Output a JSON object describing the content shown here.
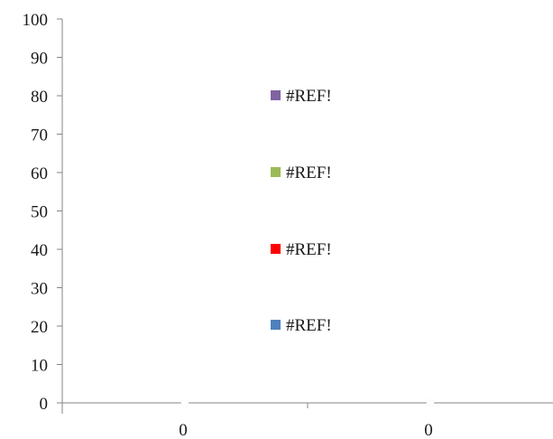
{
  "chart_data": {
    "type": "scatter",
    "title": "",
    "xlabel": "",
    "ylabel": "",
    "ylim": [
      0,
      100
    ],
    "y_ticks": [
      "0",
      "10",
      "20",
      "30",
      "40",
      "50",
      "60",
      "70",
      "80",
      "90",
      "100"
    ],
    "x_tick_labels": [
      "0",
      "0"
    ],
    "grid": false,
    "legend_placement": "center",
    "legend": [
      {
        "label": "#REF!",
        "color": "#8064A2"
      },
      {
        "label": "#REF!",
        "color": "#9BBB59"
      },
      {
        "label": "#REF!",
        "color": "#FF0000"
      },
      {
        "label": "#REF!",
        "color": "#4F81BD"
      }
    ]
  }
}
